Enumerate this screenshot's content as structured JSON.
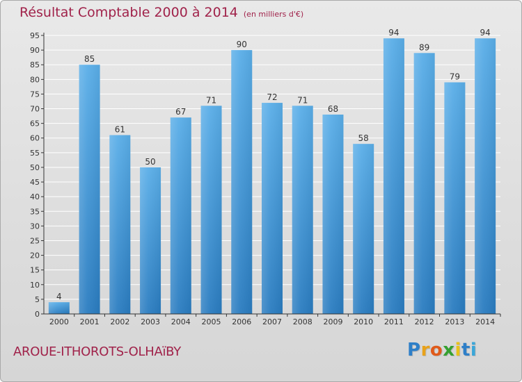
{
  "title": "Résultat Comptable 2000 à 2014",
  "subtitle": "(en milliers d'€)",
  "commune": "AROUE-ITHOROTS-OLHAïBY",
  "brand": {
    "letters": [
      "P",
      "r",
      "o",
      "x",
      "i",
      "t",
      "i"
    ],
    "colors": [
      "#2e7fc8",
      "#e8a21a",
      "#e05a1a",
      "#35a030",
      "#e8c21a",
      "#2e7fc8",
      "#3aa6d8"
    ]
  },
  "colors": {
    "title": "#a0224a",
    "bar": "#3a96dc",
    "grid": "#ffffff",
    "axis": "#333333"
  },
  "chart_data": {
    "type": "bar",
    "title": "Résultat Comptable 2000 à 2014",
    "subtitle": "(en milliers d'€)",
    "categories": [
      "2000",
      "2001",
      "2002",
      "2003",
      "2004",
      "2005",
      "2006",
      "2007",
      "2008",
      "2009",
      "2010",
      "2011",
      "2012",
      "2013",
      "2014"
    ],
    "values": [
      4,
      85,
      61,
      50,
      67,
      71,
      90,
      72,
      71,
      68,
      58,
      94,
      89,
      79,
      94
    ],
    "ylim": [
      0,
      95
    ],
    "yticks": [
      0,
      5,
      10,
      15,
      20,
      25,
      30,
      35,
      40,
      45,
      50,
      55,
      60,
      65,
      70,
      75,
      80,
      85,
      90,
      95
    ],
    "grid": true,
    "data_labels": true
  }
}
